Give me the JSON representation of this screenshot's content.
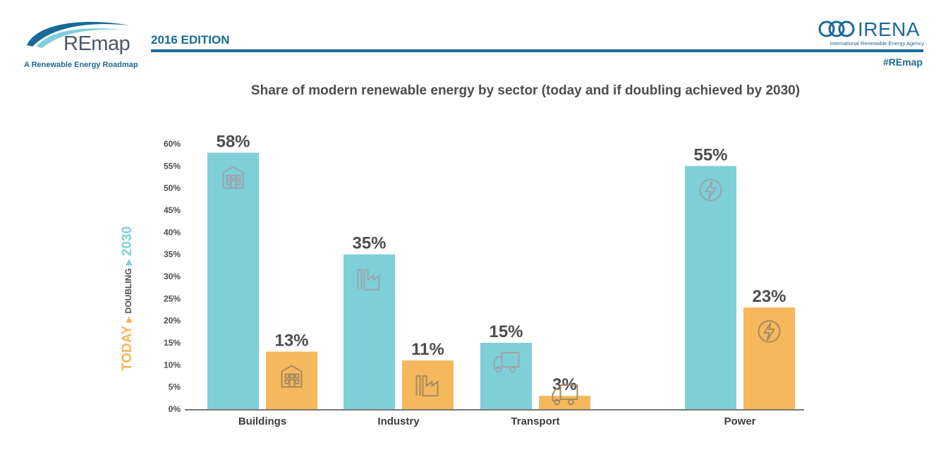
{
  "header": {
    "logo_text": "REmap",
    "logo_tagline": "A Renewable Energy Roadmap",
    "edition": "2016 EDITION",
    "org_name": "IRENA",
    "org_full": "International Renewable Energy Agency",
    "hashtag": "#REmap"
  },
  "legend_vertical": {
    "today": "TODAY",
    "doubling": "DOUBLING",
    "year": "2030"
  },
  "colors": {
    "today": "#f6b85c",
    "doubling_2030": "#7fcfd8",
    "brand": "#1a6a97"
  },
  "chart_data": {
    "type": "bar",
    "title": "Share of modern renewable energy by sector (today and if doubling achieved by 2030)",
    "categories": [
      "Buildings",
      "Industry",
      "Transport",
      "Power"
    ],
    "series": [
      {
        "name": "2030",
        "values": [
          58,
          35,
          15,
          55
        ],
        "labels": [
          "58%",
          "35%",
          "15%",
          "55%"
        ],
        "color": "#7fcfd8"
      },
      {
        "name": "TODAY",
        "values": [
          13,
          11,
          3,
          23
        ],
        "labels": [
          "13%",
          "11%",
          "3%",
          "23%"
        ],
        "color": "#f6b85c"
      }
    ],
    "icons": [
      "building-icon",
      "factory-icon",
      "truck-icon",
      "lightning-icon"
    ],
    "ylim": [
      0,
      60
    ],
    "yticks": [
      "0%",
      "5%",
      "10%",
      "15%",
      "20%",
      "25%",
      "30%",
      "35%",
      "40%",
      "45%",
      "50%",
      "55%",
      "60%"
    ],
    "xlabel": "",
    "ylabel": ""
  }
}
